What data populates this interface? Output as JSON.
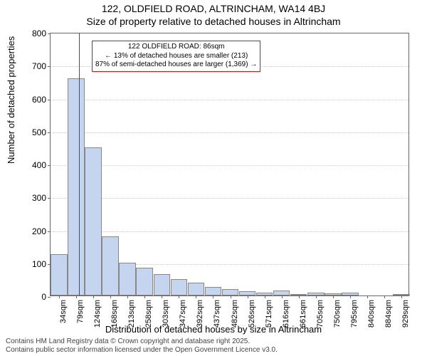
{
  "chart": {
    "type": "bar",
    "super_title": "122, OLDFIELD ROAD, ALTRINCHAM, WA14 4BJ",
    "title": "Size of property relative to detached houses in Altrincham",
    "ylabel": "Number of detached properties",
    "xlabel": "Distribution of detached houses by size in Altrincham",
    "background_color": "#ffffff",
    "grid_color": "#cccccc",
    "axis_color": "#666666",
    "bar_fill": "#c6d5ef",
    "bar_edge": "#888888",
    "marker_color": "#ff0000",
    "annot_border": "#ff0000",
    "ylim": [
      0,
      800
    ],
    "ytick_step": 100,
    "yticks": [
      0,
      100,
      200,
      300,
      400,
      500,
      600,
      700,
      800
    ],
    "categories": [
      "34sqm",
      "79sqm",
      "124sqm",
      "168sqm",
      "213sqm",
      "258sqm",
      "303sqm",
      "347sqm",
      "392sqm",
      "437sqm",
      "482sqm",
      "526sqm",
      "571sqm",
      "616sqm",
      "661sqm",
      "705sqm",
      "750sqm",
      "795sqm",
      "840sqm",
      "884sqm",
      "929sqm"
    ],
    "values": [
      125,
      660,
      450,
      180,
      100,
      85,
      65,
      50,
      40,
      25,
      20,
      12,
      8,
      15,
      4,
      8,
      6,
      8,
      0,
      0,
      4
    ],
    "marker_position": 1.16,
    "bar_width": 0.98,
    "title_fontsize": 14,
    "label_fontsize": 13,
    "tick_fontsize": 12,
    "xtick_fontsize": 11,
    "annot": {
      "line1": "122 OLDFIELD ROAD: 86sqm",
      "line2": "← 13% of detached houses are smaller (213)",
      "line3": "87% of semi-detached houses are larger (1,369) →",
      "fontsize": 10
    },
    "attribution": {
      "line1": "Contains HM Land Registry data © Crown copyright and database right 2025.",
      "line2": "Contains public sector information licensed under the Open Government Licence v3.0.",
      "fontsize": 10,
      "color": "#444444"
    }
  }
}
